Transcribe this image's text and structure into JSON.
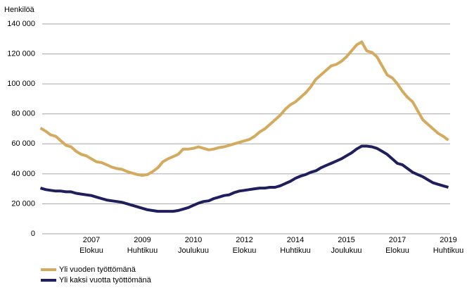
{
  "chart_data": {
    "type": "line",
    "ylabel": "Henkilöä",
    "categories": [
      null,
      null,
      null,
      null,
      null,
      null,
      null,
      null,
      null,
      null,
      [
        "2007",
        "Elokuu"
      ],
      null,
      null,
      null,
      null,
      null,
      null,
      null,
      null,
      null,
      [
        "2009",
        "Huhtikuu"
      ],
      null,
      null,
      null,
      null,
      null,
      null,
      null,
      null,
      null,
      [
        "2010",
        "Joulukuu"
      ],
      null,
      null,
      null,
      null,
      null,
      null,
      null,
      null,
      null,
      [
        "2012",
        "Elokuu"
      ],
      null,
      null,
      null,
      null,
      null,
      null,
      null,
      null,
      null,
      [
        "2014",
        "Huhtikuu"
      ],
      null,
      null,
      null,
      null,
      null,
      null,
      null,
      null,
      null,
      [
        "2015",
        "Joulukuu"
      ],
      null,
      null,
      null,
      null,
      null,
      null,
      null,
      null,
      null,
      [
        "2017",
        "Elokuu"
      ],
      null,
      null,
      null,
      null,
      null,
      null,
      null,
      null,
      null,
      [
        "2019",
        "Huhtikuu"
      ]
    ],
    "series": [
      {
        "name": "Yli vuoden työttömänä",
        "color": "#d4aa5e",
        "values": [
          70500,
          68500,
          66000,
          65000,
          62000,
          59000,
          58000,
          55000,
          53000,
          52000,
          50000,
          48000,
          47500,
          46000,
          44500,
          43500,
          43000,
          41500,
          40500,
          39500,
          39000,
          39500,
          41500,
          44000,
          48000,
          50000,
          51500,
          53000,
          56500,
          56500,
          57000,
          58000,
          57000,
          56000,
          56500,
          57500,
          58000,
          59000,
          60000,
          61000,
          62000,
          63000,
          65000,
          68000,
          70000,
          73000,
          76000,
          79000,
          83000,
          86000,
          88000,
          91000,
          94000,
          98000,
          103000,
          106000,
          109000,
          112000,
          113000,
          115000,
          118000,
          122000,
          126000,
          128000,
          122000,
          121000,
          118000,
          112000,
          106000,
          104000,
          100000,
          95000,
          91000,
          88000,
          82000,
          76000,
          73000,
          70000,
          67000,
          65000,
          62500
        ]
      },
      {
        "name": "Yli kaksi vuotta työttömänä",
        "color": "#1e1f5c",
        "values": [
          30500,
          29500,
          29000,
          28500,
          28500,
          28000,
          28000,
          27000,
          26500,
          26000,
          25500,
          24500,
          23500,
          22500,
          22000,
          21500,
          21000,
          20000,
          19000,
          18000,
          17000,
          16000,
          15500,
          15000,
          15000,
          15000,
          15000,
          15500,
          16500,
          17500,
          19000,
          20500,
          21500,
          22000,
          23500,
          24500,
          25500,
          26000,
          27500,
          28500,
          29000,
          29500,
          30000,
          30500,
          30500,
          31000,
          31000,
          32000,
          33500,
          35000,
          37000,
          38500,
          39500,
          41000,
          42000,
          44000,
          45500,
          47000,
          48500,
          50000,
          52000,
          54000,
          56500,
          58500,
          58500,
          58000,
          57000,
          55000,
          53000,
          50000,
          47000,
          46000,
          43500,
          41000,
          39500,
          38000,
          36000,
          34000,
          33000,
          32000,
          31000
        ]
      }
    ],
    "ylim": [
      0,
      140000
    ],
    "yticks": [
      0,
      {
        "value": 20000,
        "label": "20 000"
      },
      {
        "value": 40000,
        "label": "40 000"
      },
      {
        "value": 60000,
        "label": "60 000"
      },
      {
        "value": 80000,
        "label": "80 000"
      },
      {
        "value": 100000,
        "label": "100 000"
      },
      {
        "value": 120000,
        "label": "120 000"
      },
      {
        "value": 140000,
        "label": "140 000"
      }
    ],
    "grid": true
  }
}
